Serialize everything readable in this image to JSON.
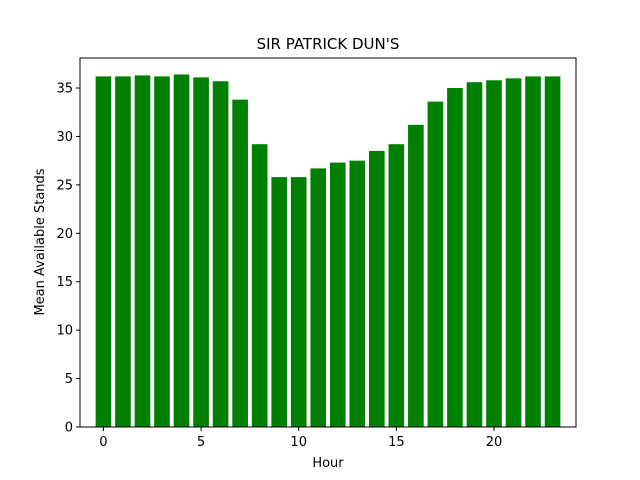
{
  "chart_data": {
    "type": "bar",
    "title": "SIR PATRICK DUN'S",
    "xlabel": "Hour",
    "ylabel": "Mean Available Stands",
    "x": [
      0,
      1,
      2,
      3,
      4,
      5,
      6,
      7,
      8,
      9,
      10,
      11,
      12,
      13,
      14,
      15,
      16,
      17,
      18,
      19,
      20,
      21,
      22,
      23
    ],
    "values": [
      36.2,
      36.2,
      36.3,
      36.2,
      36.4,
      36.1,
      35.7,
      33.8,
      29.2,
      25.8,
      25.8,
      26.7,
      27.3,
      27.5,
      28.5,
      29.2,
      31.2,
      33.6,
      35.0,
      35.6,
      35.8,
      36.0,
      36.2,
      36.2
    ],
    "xlim": [
      -1.2,
      24.2
    ],
    "ylim": [
      0,
      38.1
    ],
    "xticks": [
      0,
      5,
      10,
      15,
      20
    ],
    "yticks": [
      0,
      5,
      10,
      15,
      20,
      25,
      30,
      35
    ],
    "bar_color": "#008000",
    "grid": false
  }
}
